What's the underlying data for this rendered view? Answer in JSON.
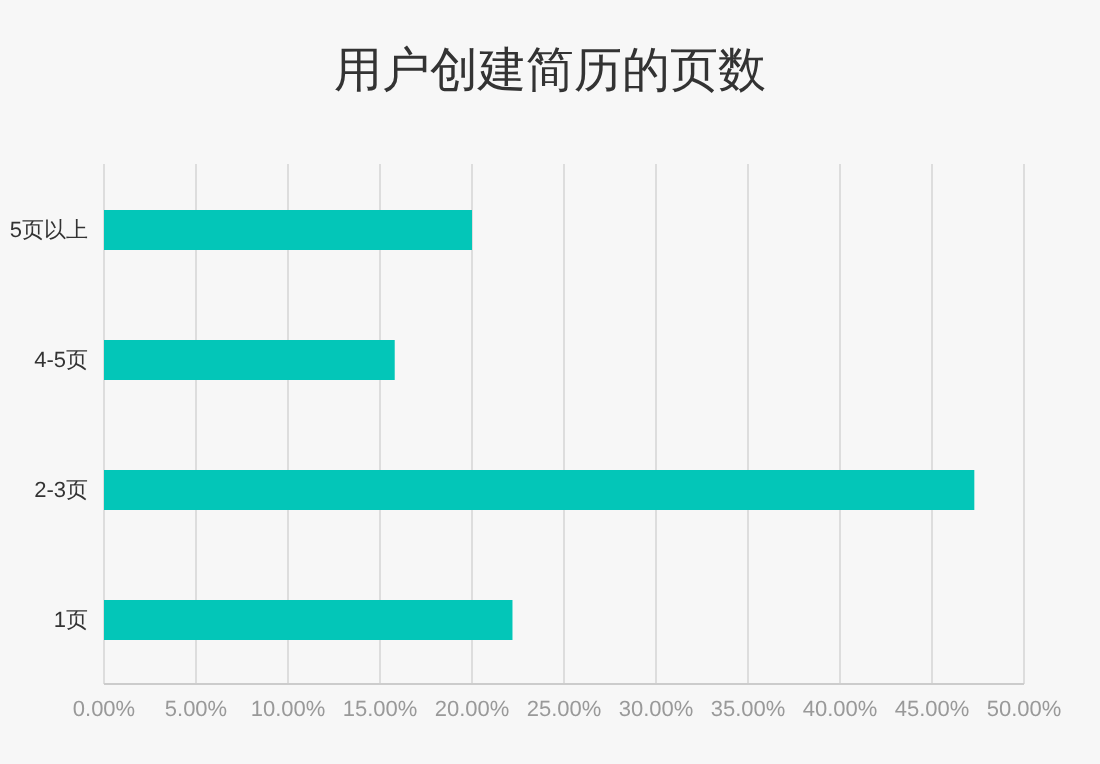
{
  "chart_data": {
    "type": "bar",
    "orientation": "horizontal",
    "title": "用户创建简历的页数",
    "categories": [
      "5页以上",
      "4-5页",
      "2-3页",
      "1页"
    ],
    "values": [
      20.0,
      15.8,
      47.3,
      22.2
    ],
    "color": "#03c6b8",
    "xlim": [
      0,
      50
    ],
    "xticks": [
      {
        "value": 0,
        "label": "0.00%"
      },
      {
        "value": 5,
        "label": "5.00%"
      },
      {
        "value": 10,
        "label": "10.00%"
      },
      {
        "value": 15,
        "label": "15.00%"
      },
      {
        "value": 20,
        "label": "20.00%"
      },
      {
        "value": 25,
        "label": "25.00%"
      },
      {
        "value": 30,
        "label": "30.00%"
      },
      {
        "value": 35,
        "label": "35.00%"
      },
      {
        "value": 40,
        "label": "40.00%"
      },
      {
        "value": 45,
        "label": "45.00%"
      },
      {
        "value": 50,
        "label": "50.00%"
      }
    ],
    "grid": "x"
  }
}
